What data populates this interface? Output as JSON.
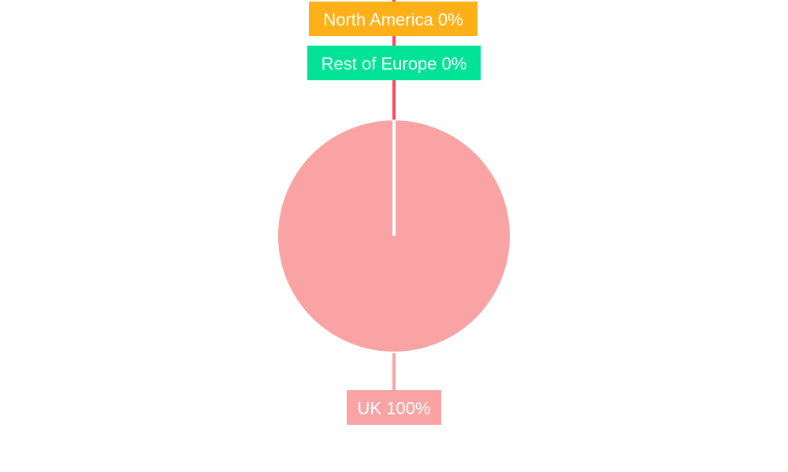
{
  "chart_data": {
    "type": "pie",
    "categories": [
      "North America",
      "Rest of Europe",
      "UK"
    ],
    "values": [
      0,
      0,
      100
    ],
    "data_labels": [
      "North America 0%",
      "Rest of Europe 0%",
      "UK 100%"
    ],
    "colors": [
      "#FEB019",
      "#00E396",
      "#F9A3A4"
    ],
    "leader_line_color": "#FF4560",
    "legend": "none"
  }
}
